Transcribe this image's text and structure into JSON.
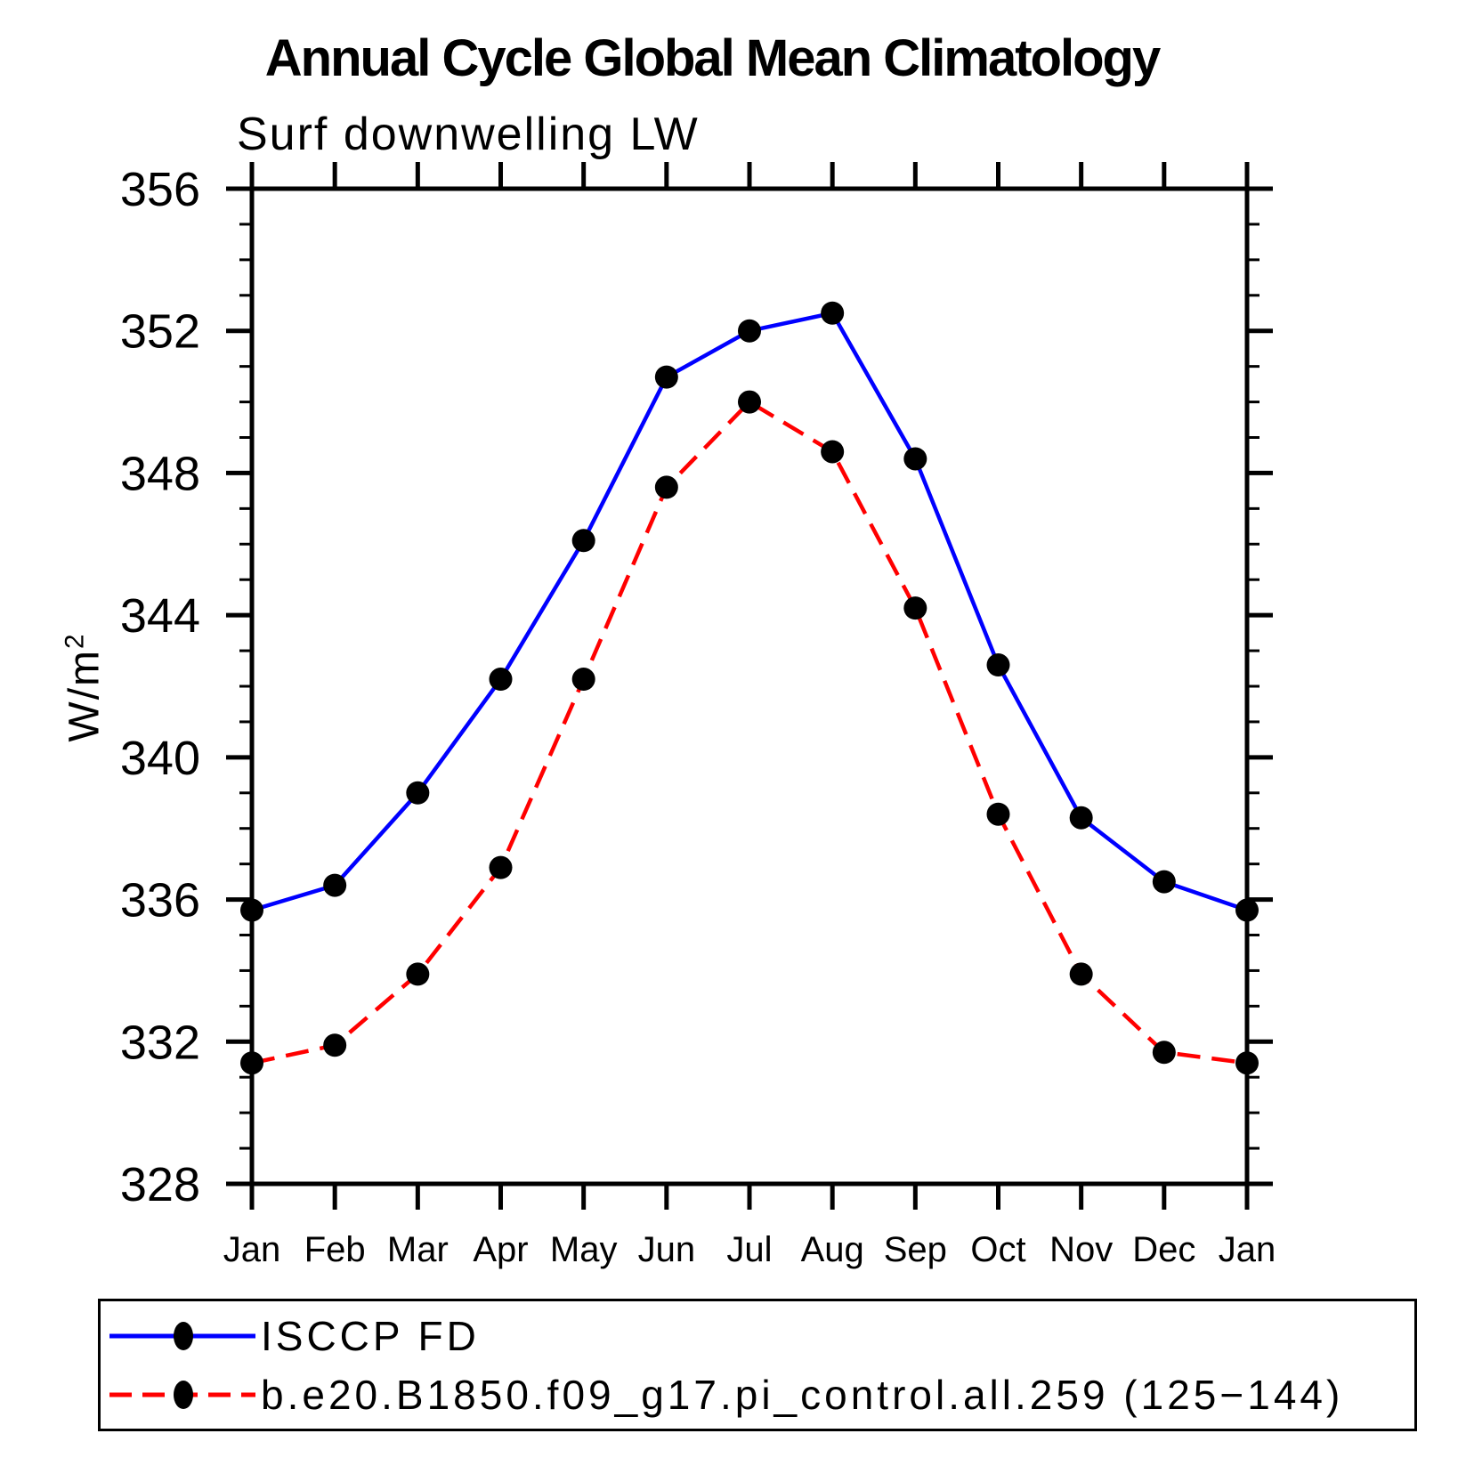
{
  "colors": {
    "background": "#ffffff",
    "axis": "#000000",
    "text": "#000000",
    "series1": "#0000ff",
    "series2": "#ff0000",
    "marker": "#000000"
  },
  "chart_data": {
    "type": "line",
    "title": "Annual Cycle Global Mean Climatology",
    "subtitle": "Surf downwelling LW",
    "ylabel_main": "W/m",
    "ylabel_sup": "2",
    "x_categories": [
      "Jan",
      "Feb",
      "Mar",
      "Apr",
      "May",
      "Jun",
      "Jul",
      "Aug",
      "Sep",
      "Oct",
      "Nov",
      "Dec",
      "Jan"
    ],
    "ylim": [
      328,
      356
    ],
    "ytick_major_step": 4,
    "ytick_minor_step": 1,
    "y_tick_labels": [
      "328",
      "332",
      "336",
      "340",
      "344",
      "348",
      "352",
      "356"
    ],
    "grid": false,
    "legend_position": "bottom-left-box",
    "series": [
      {
        "name": "ISCCP FD",
        "color": "#0000ff",
        "line_style": "solid",
        "marker": "filled-circle",
        "marker_color": "#000000",
        "values": [
          335.7,
          336.4,
          339.0,
          342.2,
          346.1,
          350.7,
          352.0,
          352.5,
          348.4,
          342.6,
          338.3,
          336.5,
          335.7
        ]
      },
      {
        "name": "b.e20.B1850.f09_g17.pi_control.all.259 (125−144)",
        "color": "#ff0000",
        "line_style": "dashed",
        "marker": "filled-circle",
        "marker_color": "#000000",
        "values": [
          331.4,
          331.9,
          333.9,
          336.9,
          342.2,
          347.6,
          350.0,
          348.6,
          344.2,
          338.4,
          333.9,
          331.7,
          331.4
        ]
      }
    ]
  }
}
